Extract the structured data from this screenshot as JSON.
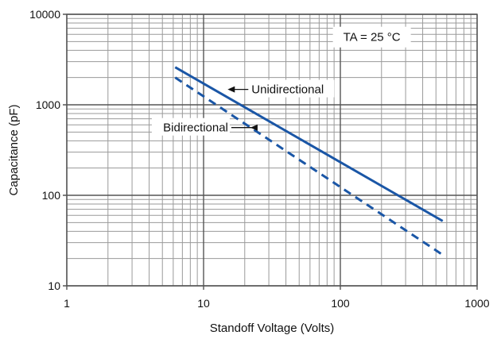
{
  "chart_data": {
    "type": "line",
    "xlabel": "Standoff Voltage (Volts)",
    "ylabel": "Capacitance (pF)",
    "x_scale": "log",
    "y_scale": "log",
    "xlim": [
      1,
      1000
    ],
    "ylim": [
      10,
      10000
    ],
    "x_ticks": [
      {
        "value": 1,
        "label": "1"
      },
      {
        "value": 10,
        "label": "10"
      },
      {
        "value": 100,
        "label": "100"
      },
      {
        "value": 1000,
        "label": "1000"
      }
    ],
    "y_ticks": [
      {
        "value": 10,
        "label": "10"
      },
      {
        "value": 100,
        "label": "100"
      },
      {
        "value": 1000,
        "label": "1000"
      },
      {
        "value": 10000,
        "label": "10000"
      }
    ],
    "grid": true,
    "series": [
      {
        "name": "Unidirectional",
        "style": "solid",
        "color": "#1a56a6",
        "x": [
          6.2,
          560
        ],
        "y": [
          2600,
          52
        ]
      },
      {
        "name": "Bidirectional",
        "style": "dashed",
        "color": "#1a56a6",
        "x": [
          6.2,
          560
        ],
        "y": [
          2000,
          22
        ]
      }
    ],
    "annotations": [
      {
        "text": "TA = 25 °C",
        "x": 170,
        "y": 5600
      },
      {
        "text": "Unidirectional",
        "arrow_to_x": 15,
        "arrow_to_y": 1480
      },
      {
        "text": "Bidirectional",
        "arrow_to_x": 22,
        "arrow_to_y": 560
      }
    ]
  }
}
